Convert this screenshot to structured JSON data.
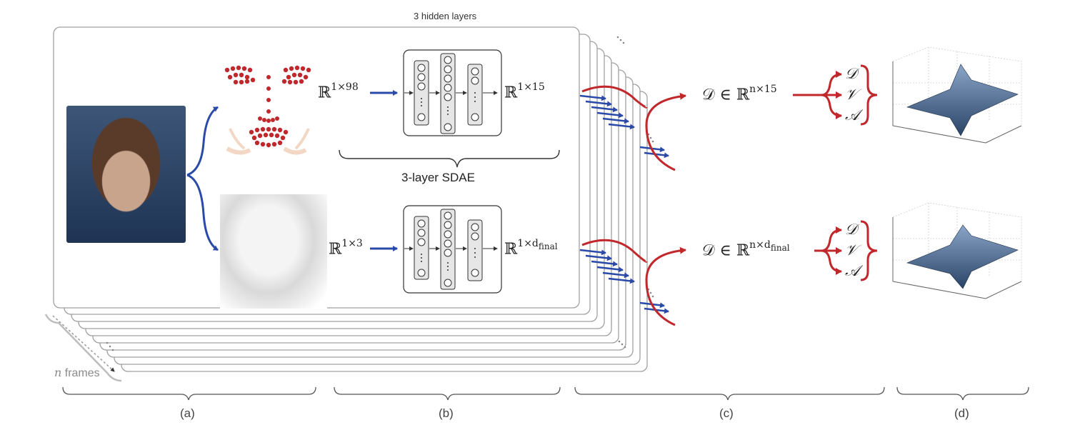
{
  "nn": {
    "hidden_layers_label": "3 hidden layers",
    "sdae_label": "3-layer SDAE"
  },
  "row1": {
    "input_base": "ℝ",
    "input_exp": "1×98",
    "output_base": "ℝ",
    "output_exp": "1×15",
    "descriptor_base": "𝒟 ∈ ℝ",
    "descriptor_exp": "n×15"
  },
  "row2": {
    "input_base": "ℝ",
    "input_exp": "1×3",
    "output_base": "ℝ",
    "output_exp": "1×d",
    "output_sub": "final",
    "descriptor_base": "𝒟 ∈ ℝ",
    "descriptor_exp": "n×d",
    "descriptor_sub": "final"
  },
  "dva": [
    "𝒟",
    "𝒱",
    "𝒜"
  ],
  "frames_label_var": "n",
  "frames_label_text": " frames",
  "panels": [
    "(a)",
    "(b)",
    "(c)",
    "(d)"
  ],
  "colors": {
    "blue_arrow": "#2a4aa8",
    "red_arrow": "#c0282c",
    "card_border": "#9a9a9a",
    "surface": "#3e5c82"
  }
}
